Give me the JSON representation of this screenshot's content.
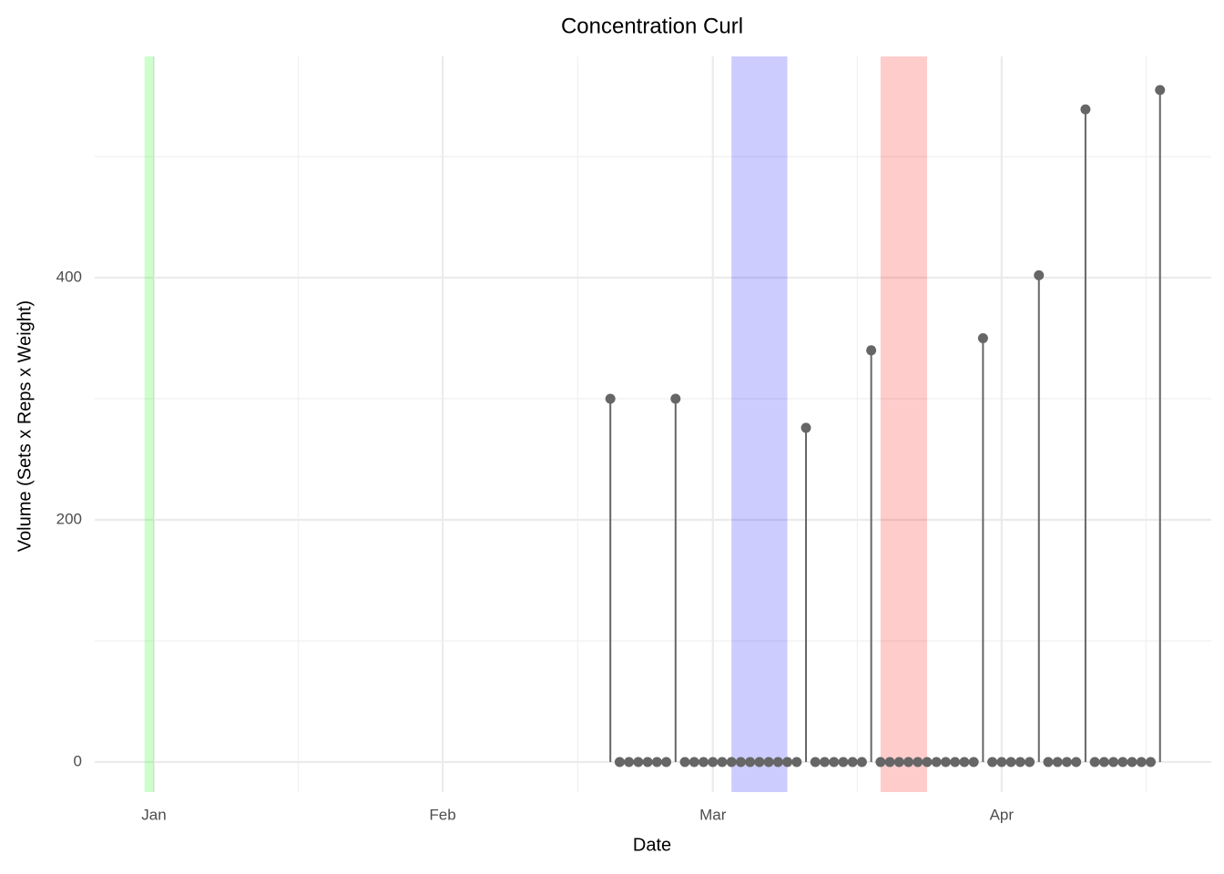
{
  "chart_data": {
    "type": "lollipop",
    "title": "Concentration Curl",
    "x_label": "Date",
    "y_label": "Volume (Sets x Reps x Weight)",
    "x": [
      49,
      50,
      51,
      52,
      53,
      54,
      55,
      56,
      57,
      58,
      59,
      60,
      61,
      62,
      63,
      64,
      65,
      66,
      67,
      68,
      69,
      70,
      71,
      72,
      73,
      74,
      75,
      76,
      77,
      78,
      79,
      80,
      81,
      82,
      83,
      84,
      85,
      86,
      87,
      88,
      89,
      90,
      91,
      92,
      93,
      94,
      95,
      96,
      97,
      98,
      99,
      100,
      101,
      102,
      103,
      104,
      105,
      106,
      107,
      108
    ],
    "values": [
      300,
      0,
      0,
      0,
      0,
      0,
      0,
      300,
      0,
      0,
      0,
      0,
      0,
      0,
      0,
      0,
      0,
      0,
      0,
      0,
      0,
      276,
      0,
      0,
      0,
      0,
      0,
      0,
      340,
      0,
      0,
      0,
      0,
      0,
      0,
      0,
      0,
      0,
      0,
      0,
      350,
      0,
      0,
      0,
      0,
      0,
      402,
      0,
      0,
      0,
      0,
      539,
      0,
      0,
      0,
      0,
      0,
      0,
      0,
      555
    ],
    "color": "#666666",
    "bands": [
      {
        "start": -1,
        "end": 0,
        "color": "rgba(0,255,0,0.2)"
      },
      {
        "start": 62,
        "end": 68,
        "color": "rgba(0,0,255,0.2)"
      },
      {
        "start": 78,
        "end": 83,
        "color": "rgba(255,0,0,0.2)"
      }
    ],
    "xlim": [
      -6.35,
      113.5
    ],
    "ylim": [
      -24.8,
      582.7
    ],
    "xticks": [
      {
        "value": 0,
        "label": "Jan"
      },
      {
        "value": 31,
        "label": "Feb"
      },
      {
        "value": 60,
        "label": "Mar"
      },
      {
        "value": 91,
        "label": "Apr"
      }
    ],
    "yticks": [
      0,
      200,
      400
    ],
    "grid": true
  }
}
